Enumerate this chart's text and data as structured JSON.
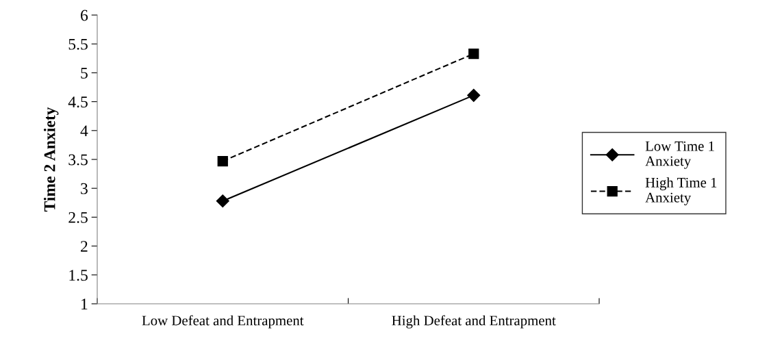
{
  "chart_data": {
    "type": "line",
    "ylabel": "Time 2 Anxiety",
    "categories": [
      "Low Defeat and Entrapment",
      "High Defeat and Entrapment"
    ],
    "series": [
      {
        "name": "Low Time 1\nAnxiety",
        "color": "#000000",
        "values": [
          2.78,
          4.61
        ],
        "marker": "diamond",
        "line_style": "solid"
      },
      {
        "name": "High Time 1\nAnxiety",
        "color": "#000000",
        "values": [
          3.47,
          5.33
        ],
        "marker": "square",
        "line_style": "dashed"
      }
    ],
    "ylim": [
      1,
      6
    ],
    "yticks": [
      1,
      1.5,
      2,
      2.5,
      3,
      3.5,
      4,
      4.5,
      5,
      5.5,
      6
    ],
    "grid": false,
    "legend": "right"
  }
}
